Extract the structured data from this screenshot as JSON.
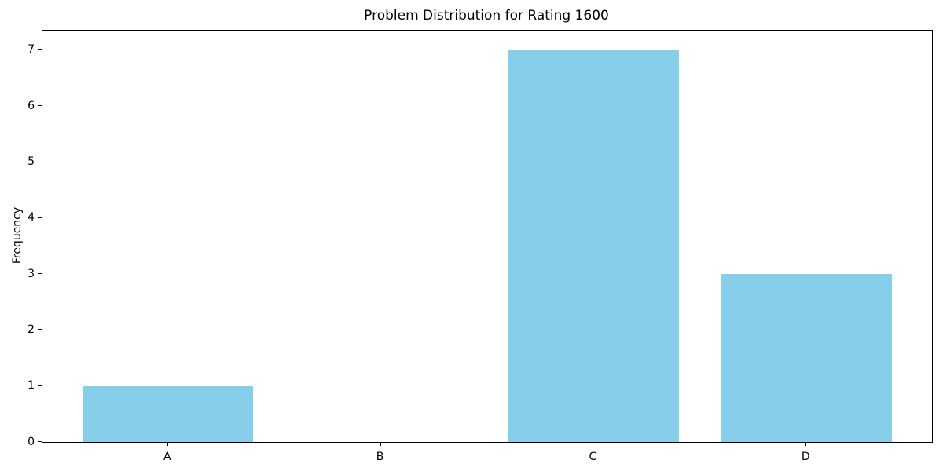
{
  "chart_data": {
    "type": "bar",
    "title": "Problem Distribution for Rating 1600",
    "xlabel": "",
    "ylabel": "Frequency",
    "categories": [
      "A",
      "B",
      "C",
      "D"
    ],
    "values": [
      1,
      0,
      7,
      3
    ],
    "yticks": [
      0,
      1,
      2,
      3,
      4,
      5,
      6,
      7
    ],
    "ylim": [
      0,
      7.35
    ],
    "bar_color": "#87CEEB",
    "grid": false,
    "legend": null
  }
}
